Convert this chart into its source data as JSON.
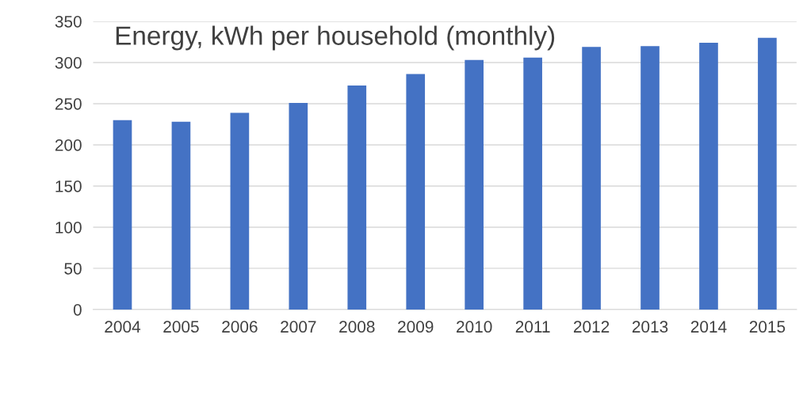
{
  "chart_data": {
    "type": "bar",
    "title": "Energy, kWh per household (monthly)",
    "categories": [
      "2004",
      "2005",
      "2006",
      "2007",
      "2008",
      "2009",
      "2010",
      "2011",
      "2012",
      "2013",
      "2014",
      "2015"
    ],
    "values": [
      230,
      228,
      239,
      251,
      272,
      286,
      303,
      306,
      319,
      320,
      324,
      330
    ],
    "color": "#4472c4",
    "ylim": [
      0,
      350
    ],
    "yticks": [
      0,
      50,
      100,
      150,
      200,
      250,
      300,
      350
    ],
    "grid": "y",
    "legend": false
  }
}
